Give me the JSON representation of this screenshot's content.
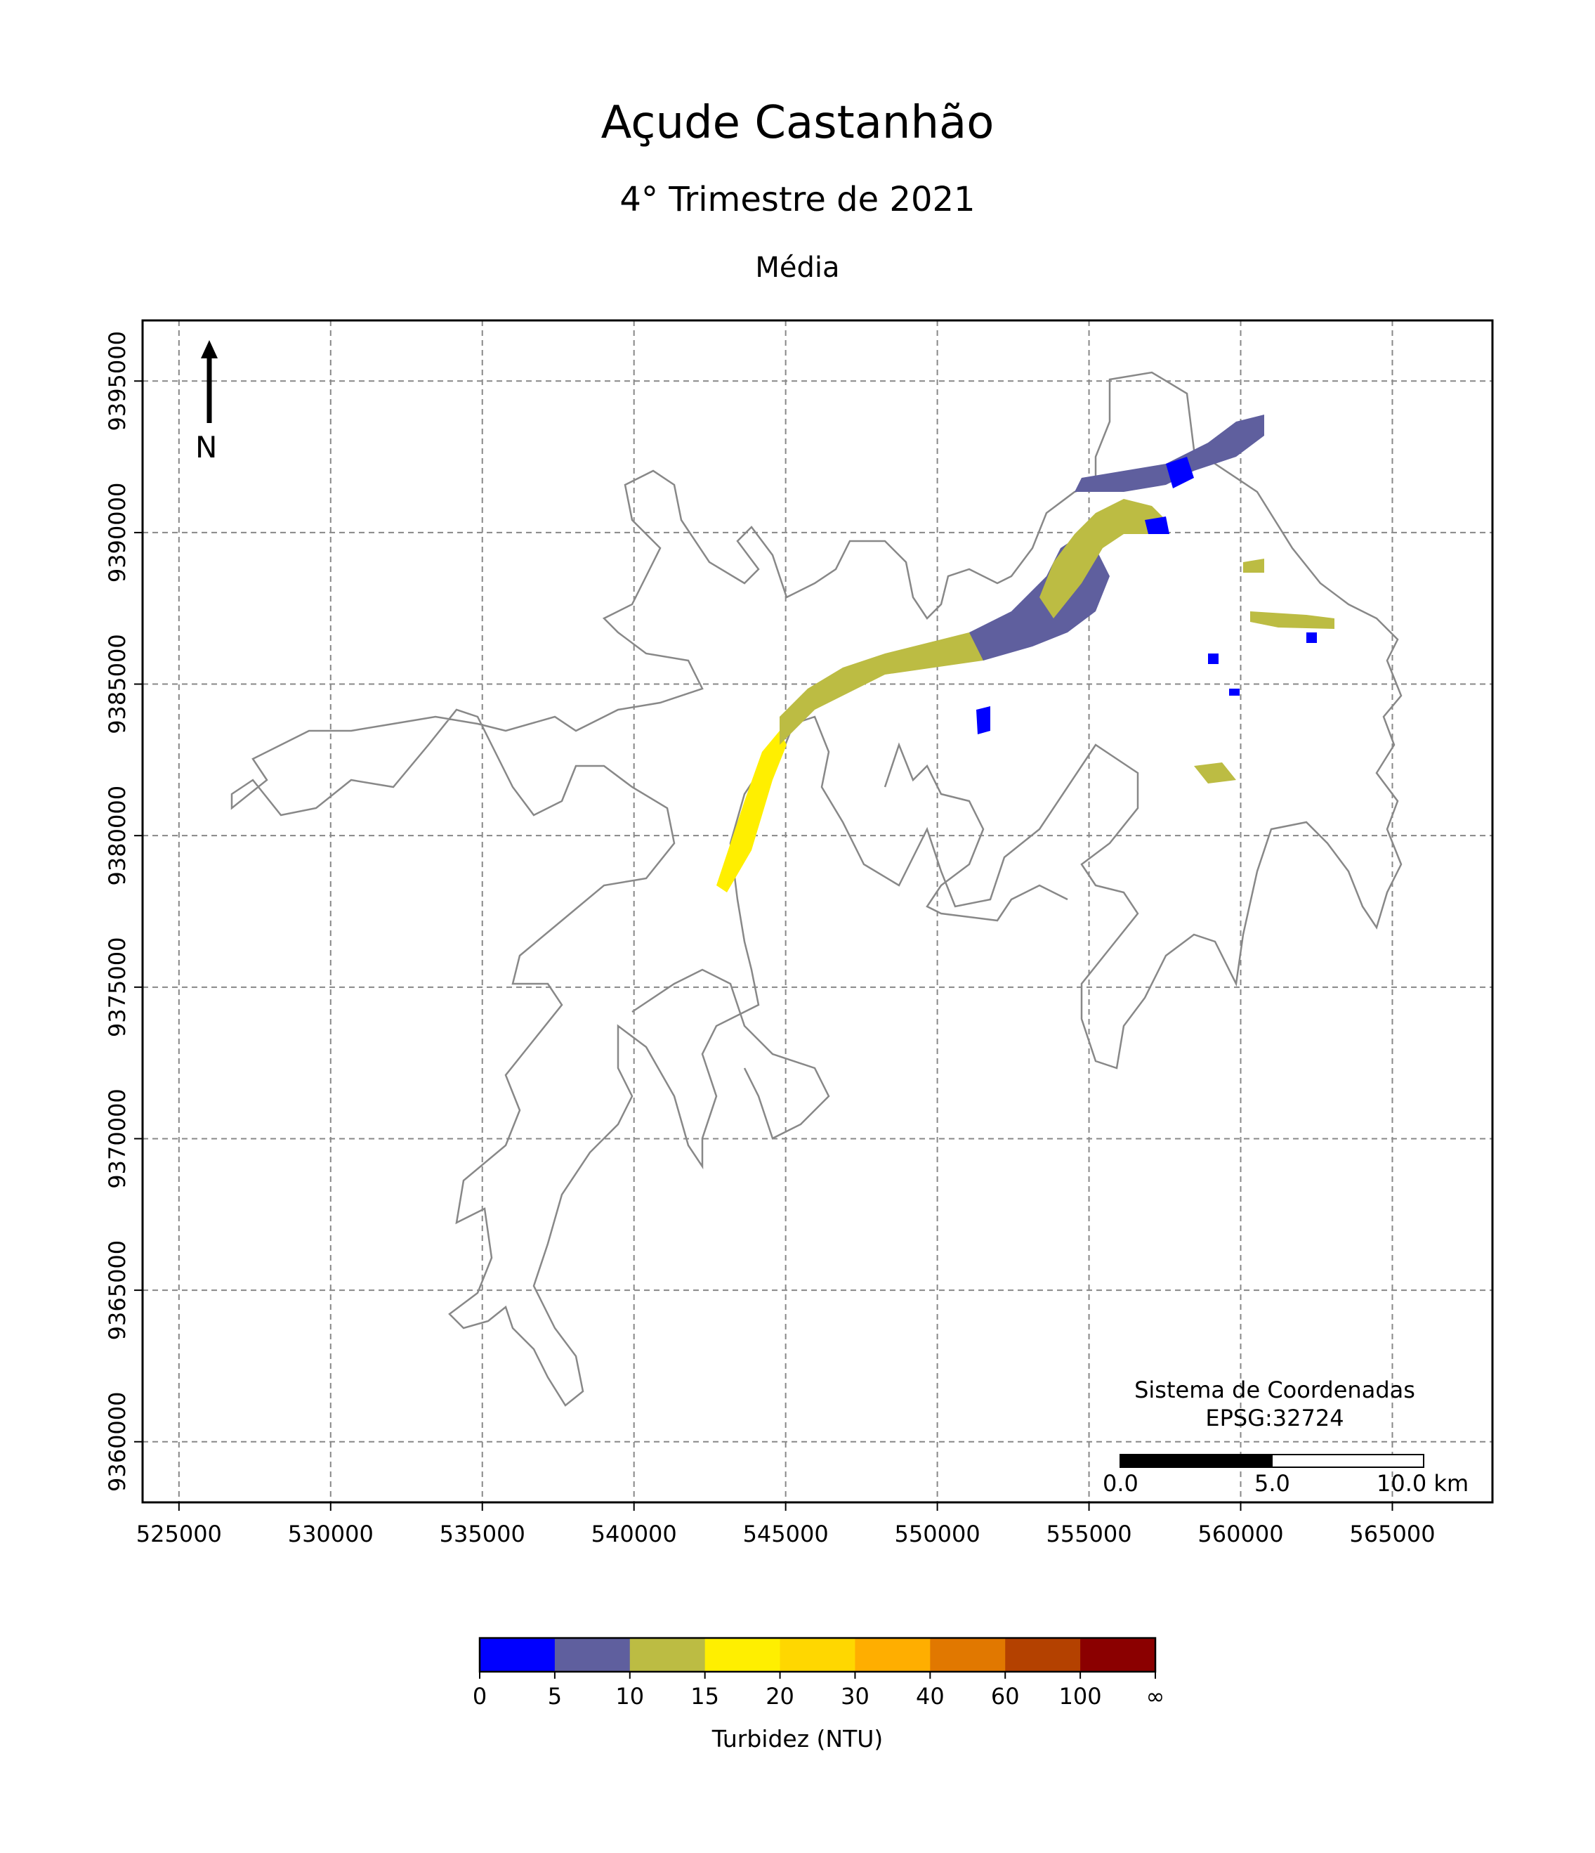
{
  "title": "Açude Castanhão",
  "subtitle": "4° Trimestre de 2021",
  "subsubtitle": "Média",
  "north_label": "N",
  "coord_system": {
    "line1": "Sistema de Coordenadas",
    "line2": "EPSG:32724"
  },
  "scale_bar": {
    "labels": [
      "0.0",
      "5.0",
      "10.0 km"
    ],
    "segments_km": [
      0,
      5,
      10
    ]
  },
  "colorbar": {
    "label": "Turbidez (NTU)",
    "ticks": [
      "0",
      "5",
      "10",
      "15",
      "20",
      "30",
      "40",
      "60",
      "100",
      "∞"
    ],
    "colors": [
      "#0000ff",
      "#5f5f9e",
      "#bcbc43",
      "#ffef00",
      "#ffd700",
      "#ffae00",
      "#e17800",
      "#b44100",
      "#8b0000"
    ]
  },
  "chart_data": {
    "type": "map",
    "title": "Açude Castanhão",
    "subtitle": "4° Trimestre de 2021",
    "xlim": [
      523800,
      568300
    ],
    "ylim": [
      9358000,
      9397000
    ],
    "xticks": [
      525000,
      530000,
      535000,
      540000,
      545000,
      550000,
      555000,
      560000,
      565000
    ],
    "yticks": [
      9360000,
      9365000,
      9370000,
      9375000,
      9380000,
      9385000,
      9390000,
      9395000
    ],
    "grid": true,
    "legend_placement": "bottom"
  }
}
